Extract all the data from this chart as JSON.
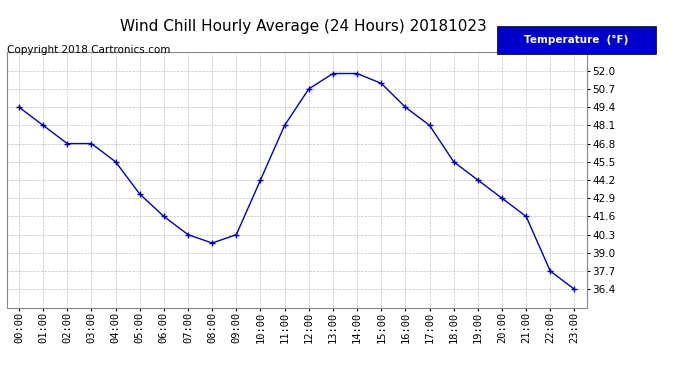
{
  "title": "Wind Chill Hourly Average (24 Hours) 20181023",
  "copyright_text": "Copyright 2018 Cartronics.com",
  "legend_label": "Temperature  (°F)",
  "hours": [
    "00:00",
    "01:00",
    "02:00",
    "03:00",
    "04:00",
    "05:00",
    "06:00",
    "07:00",
    "08:00",
    "09:00",
    "10:00",
    "11:00",
    "12:00",
    "13:00",
    "14:00",
    "15:00",
    "16:00",
    "17:00",
    "18:00",
    "19:00",
    "20:00",
    "21:00",
    "22:00",
    "23:00"
  ],
  "values": [
    49.4,
    48.1,
    46.8,
    46.8,
    45.5,
    43.2,
    41.6,
    40.3,
    39.7,
    40.3,
    44.2,
    48.1,
    50.7,
    51.8,
    51.8,
    51.1,
    49.4,
    48.1,
    45.5,
    44.2,
    42.9,
    41.6,
    37.7,
    36.4
  ],
  "ylim_min": 35.1,
  "ylim_max": 53.3,
  "yticks": [
    36.4,
    37.7,
    39.0,
    40.3,
    41.6,
    42.9,
    44.2,
    45.5,
    46.8,
    48.1,
    49.4,
    50.7,
    52.0
  ],
  "line_color": "#0000bb",
  "marker": "+",
  "bg_color": "#ffffff",
  "plot_bg_color": "#ffffff",
  "grid_color": "#bbbbbb",
  "title_color": "#000000",
  "legend_bg": "#0000cc",
  "legend_text_color": "#ffffff",
  "title_fontsize": 11,
  "tick_fontsize": 7.5,
  "copyright_fontsize": 7.5
}
